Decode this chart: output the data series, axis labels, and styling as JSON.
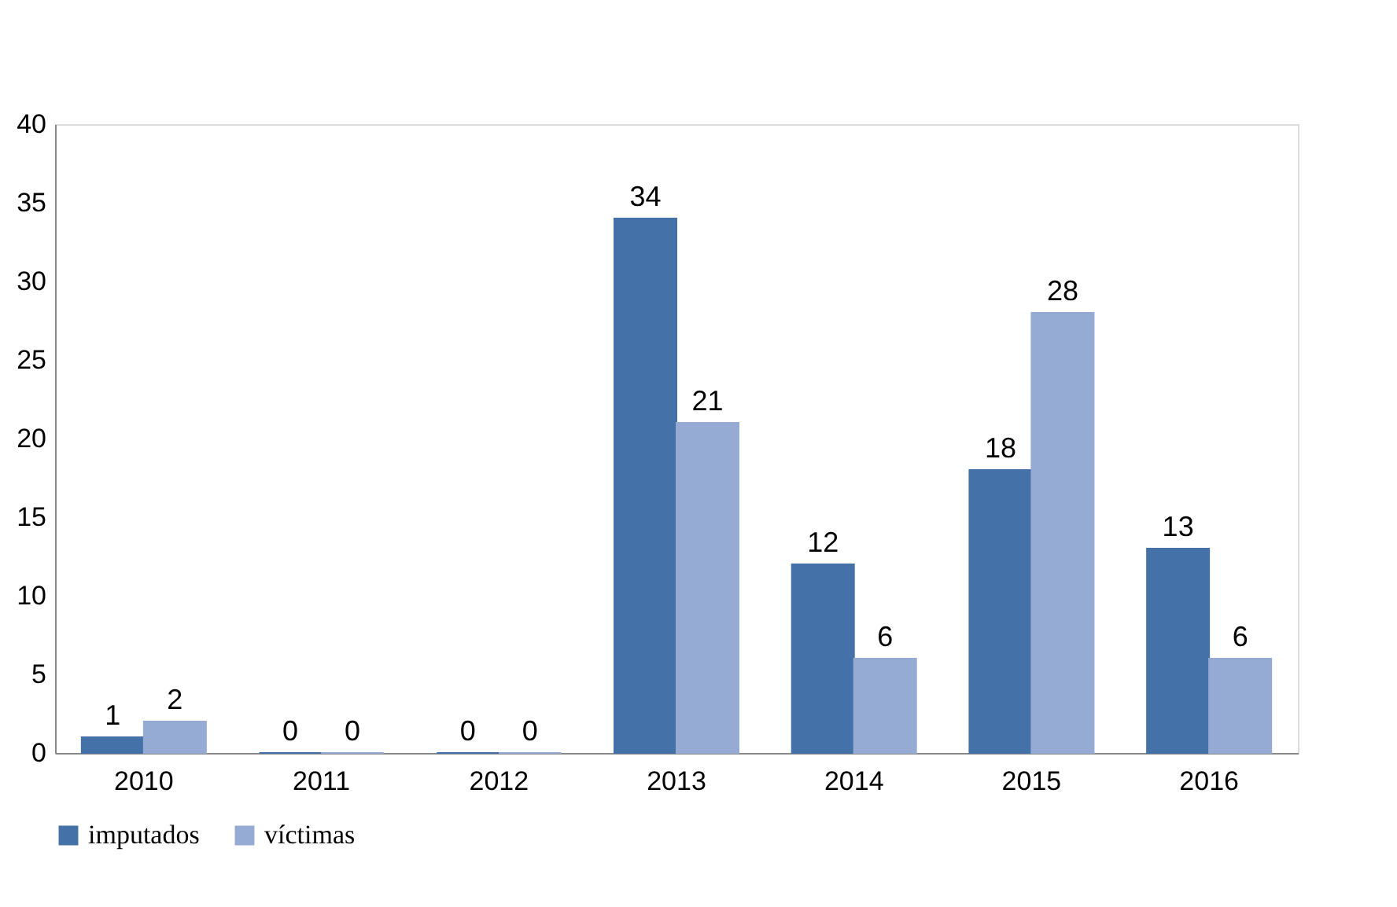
{
  "chart_data": {
    "type": "bar",
    "categories": [
      "2010",
      "2011",
      "2012",
      "2013",
      "2014",
      "2015",
      "2016"
    ],
    "series": [
      {
        "name": "imputados",
        "color": "#4472a8",
        "values": [
          1,
          0,
          0,
          34,
          12,
          18,
          13
        ]
      },
      {
        "name": "víctimas",
        "color": "#95abd3",
        "values": [
          2,
          0,
          0,
          21,
          6,
          28,
          6
        ]
      }
    ],
    "ylim": [
      0,
      40
    ],
    "yticks": [
      0,
      5,
      10,
      15,
      20,
      25,
      30,
      35,
      40
    ],
    "grid": false,
    "legend": "bottom",
    "data_labels": true
  }
}
